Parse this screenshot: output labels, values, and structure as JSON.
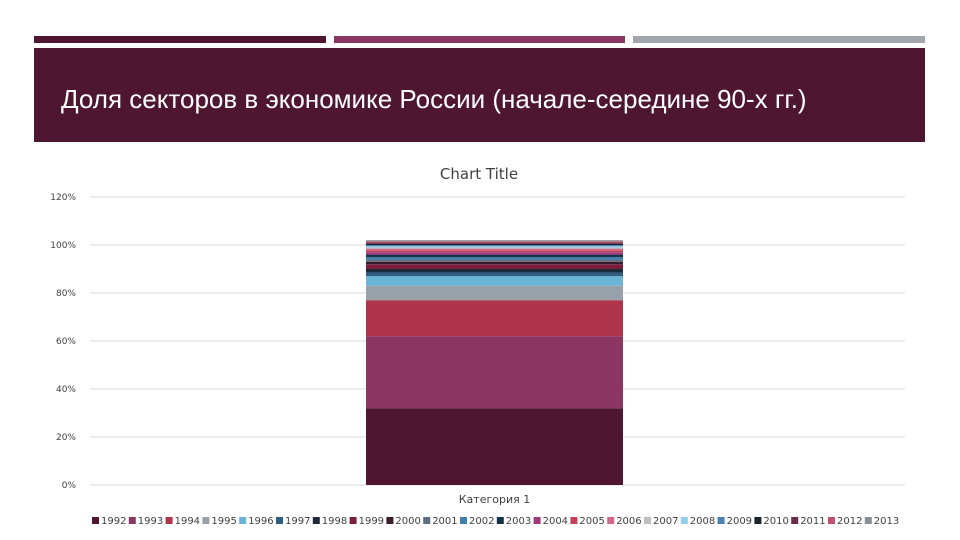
{
  "slide": {
    "title": "Доля секторов в экономике России (начале-середине 90-х гг.)",
    "accent_bars": [
      "#4e1631",
      "#8b3563",
      "#a0a6ac"
    ],
    "banner_color": "#4e1631"
  },
  "chart_data": {
    "type": "bar",
    "stacked": "percent",
    "title": "Chart Title",
    "categories": [
      "Категория 1"
    ],
    "ylim": [
      0,
      120
    ],
    "yticks": [
      0,
      20,
      40,
      60,
      80,
      100,
      120
    ],
    "ytick_labels": [
      "0%",
      "20%",
      "40%",
      "60%",
      "80%",
      "100%",
      "120%"
    ],
    "grid": true,
    "legend_position": "bottom",
    "series": [
      {
        "name": "1992",
        "values": [
          32
        ],
        "color": "#4e1631"
      },
      {
        "name": "1993",
        "values": [
          30
        ],
        "color": "#8b3563"
      },
      {
        "name": "1994",
        "values": [
          15
        ],
        "color": "#b0344a"
      },
      {
        "name": "1995",
        "values": [
          6
        ],
        "color": "#98a1a9"
      },
      {
        "name": "1996",
        "values": [
          4
        ],
        "color": "#6ab4d6"
      },
      {
        "name": "1997",
        "values": [
          1.5
        ],
        "color": "#2e5f85"
      },
      {
        "name": "1998",
        "values": [
          1.5
        ],
        "color": "#1c2b3a"
      },
      {
        "name": "1999",
        "values": [
          2
        ],
        "color": "#7a1e3e"
      },
      {
        "name": "2000",
        "values": [
          1
        ],
        "color": "#3a1d2c"
      },
      {
        "name": "2001",
        "values": [
          1
        ],
        "color": "#5c6e7f"
      },
      {
        "name": "2002",
        "values": [
          1
        ],
        "color": "#3f7fa8"
      },
      {
        "name": "2003",
        "values": [
          1
        ],
        "color": "#17324a"
      },
      {
        "name": "2004",
        "values": [
          1
        ],
        "color": "#9e3a7a"
      },
      {
        "name": "2005",
        "values": [
          0.8
        ],
        "color": "#c44058"
      },
      {
        "name": "2006",
        "values": [
          0.7
        ],
        "color": "#d06a8a"
      },
      {
        "name": "2007",
        "values": [
          0.5
        ],
        "color": "#b9c0c6"
      },
      {
        "name": "2008",
        "values": [
          0.5
        ],
        "color": "#8fcde8"
      },
      {
        "name": "2009",
        "values": [
          0.5
        ],
        "color": "#4a7fb0"
      },
      {
        "name": "2010",
        "values": [
          0.5
        ],
        "color": "#1a2430"
      },
      {
        "name": "2011",
        "values": [
          0.5
        ],
        "color": "#6a2a4a"
      },
      {
        "name": "2012",
        "values": [
          0.5
        ],
        "color": "#c0506e"
      },
      {
        "name": "2013",
        "values": [
          0.5
        ],
        "color": "#8a8f95"
      }
    ]
  }
}
